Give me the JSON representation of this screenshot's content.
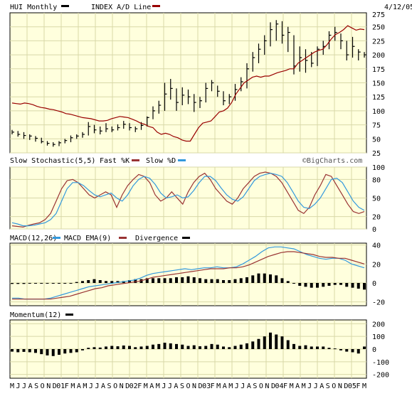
{
  "header": {
    "symbol_legend": "HUI Monthly",
    "index_legend": "INDEX A/D Line",
    "date": "4/12/05"
  },
  "colors": {
    "panel_bg": "#ffffdd",
    "grid": "#d8d8a8",
    "bars": "#000000",
    "ad_line": "#990000",
    "fast_k": "#993333",
    "slow_d": "#3399dd",
    "macd": "#3399dd",
    "macd_ema": "#993333",
    "divergence": "#000000",
    "momentum": "#000000"
  },
  "chart_data": [
    {
      "type": "bar",
      "title": "HUI Monthly",
      "legend": [
        "HUI Monthly",
        "INDEX A/D Line"
      ],
      "y_ticks": [
        "275",
        "250",
        "225",
        "200",
        "175",
        "150",
        "125",
        "100",
        "75",
        "50",
        "25"
      ],
      "ylim": [
        25,
        275
      ],
      "x_ticks": [
        "M",
        "J",
        "J",
        "A",
        "S",
        "O",
        "N",
        "D",
        "01",
        "F",
        "M",
        "A",
        "M",
        "J",
        "J",
        "A",
        "S",
        "O",
        "N",
        "D",
        "02",
        "F",
        "M",
        "A",
        "M",
        "J",
        "J",
        "A",
        "S",
        "O",
        "N",
        "D",
        "03",
        "F",
        "M",
        "A",
        "M",
        "J",
        "J",
        "A",
        "S",
        "O",
        "N",
        "D",
        "04",
        "F",
        "M",
        "A",
        "M",
        "J",
        "J",
        "A",
        "S",
        "O",
        "N",
        "D",
        "05",
        "F",
        "M"
      ],
      "series": [
        {
          "name": "HUI Monthly",
          "hlc": [
            [
              66,
              58,
              62
            ],
            [
              64,
              54,
              58
            ],
            [
              62,
              50,
              56
            ],
            [
              58,
              48,
              55
            ],
            [
              55,
              45,
              51
            ],
            [
              52,
              42,
              45
            ],
            [
              46,
              38,
              42
            ],
            [
              44,
              36,
              40
            ],
            [
              46,
              37,
              43
            ],
            [
              50,
              42,
              47
            ],
            [
              56,
              44,
              52
            ],
            [
              58,
              50,
              55
            ],
            [
              62,
              52,
              58
            ],
            [
              80,
              56,
              72
            ],
            [
              75,
              60,
              66
            ],
            [
              72,
              58,
              64
            ],
            [
              78,
              62,
              68
            ],
            [
              72,
              62,
              66
            ],
            [
              76,
              65,
              70
            ],
            [
              82,
              68,
              76
            ],
            [
              78,
              65,
              70
            ],
            [
              72,
              62,
              68
            ],
            [
              80,
              66,
              74
            ],
            [
              90,
              72,
              88
            ],
            [
              108,
              85,
              100
            ],
            [
              118,
              95,
              110
            ],
            [
              150,
              100,
              130
            ],
            [
              157,
              120,
              140
            ],
            [
              140,
              100,
              115
            ],
            [
              142,
              110,
              128
            ],
            [
              138,
              112,
              125
            ],
            [
              130,
              98,
              115
            ],
            [
              125,
              105,
              118
            ],
            [
              150,
              115,
              140
            ],
            [
              155,
              135,
              150
            ],
            [
              145,
              125,
              135
            ],
            [
              135,
              110,
              118
            ],
            [
              130,
              112,
              125
            ],
            [
              148,
              118,
              138
            ],
            [
              160,
              135,
              152
            ],
            [
              185,
              140,
              175
            ],
            [
              205,
              170,
              195
            ],
            [
              220,
              185,
              210
            ],
            [
              235,
              200,
              225
            ],
            [
              258,
              215,
              245
            ],
            [
              262,
              225,
              255
            ],
            [
              260,
              220,
              235
            ],
            [
              250,
              205,
              240
            ],
            [
              235,
              165,
              180
            ],
            [
              215,
              170,
              195
            ],
            [
              210,
              168,
              190
            ],
            [
              205,
              178,
              185
            ],
            [
              215,
              180,
              210
            ],
            [
              225,
              200,
              215
            ],
            [
              242,
              210,
              235
            ],
            [
              250,
              225,
              240
            ],
            [
              238,
              210,
              225
            ],
            [
              225,
              190,
              200
            ],
            [
              232,
              195,
              215
            ],
            [
              210,
              190,
              205
            ],
            [
              205,
              195,
              200
            ]
          ]
        },
        {
          "name": "INDEX A/D Line",
          "values": [
            114,
            113,
            112,
            114,
            113,
            111,
            108,
            106,
            105,
            103,
            102,
            100,
            98,
            95,
            94,
            92,
            90,
            88,
            87,
            86,
            84,
            82,
            82,
            83,
            86,
            88,
            90,
            89,
            88,
            85,
            82,
            78,
            76,
            72,
            70,
            62,
            58,
            60,
            58,
            54,
            52,
            48,
            46,
            46,
            58,
            70,
            78,
            80,
            82,
            90,
            98,
            100,
            105,
            115,
            130,
            140,
            150,
            155,
            160,
            162,
            160,
            162,
            162,
            165,
            168,
            170,
            172,
            175,
            175,
            185,
            190,
            195,
            200,
            205,
            208,
            210,
            218,
            228,
            236,
            240,
            245,
            252,
            248,
            244,
            246,
            245
          ]
        }
      ]
    },
    {
      "type": "line",
      "title": "Slow Stochastic(5,5)",
      "legend": [
        "Fast %K",
        "Slow %D"
      ],
      "y_ticks": [
        "100",
        "80",
        "50",
        "20",
        "0"
      ],
      "ylim": [
        0,
        100
      ],
      "series": [
        {
          "name": "Fast %K",
          "values": [
            5,
            4,
            3,
            6,
            8,
            10,
            15,
            25,
            45,
            65,
            78,
            80,
            75,
            65,
            55,
            50,
            55,
            60,
            55,
            35,
            55,
            70,
            80,
            88,
            85,
            75,
            55,
            45,
            50,
            60,
            50,
            40,
            60,
            75,
            85,
            90,
            80,
            65,
            55,
            45,
            40,
            50,
            65,
            75,
            85,
            90,
            92,
            90,
            85,
            75,
            60,
            45,
            30,
            25,
            35,
            55,
            70,
            88,
            85,
            70,
            55,
            40,
            28,
            25,
            28
          ]
        },
        {
          "name": "Slow %D",
          "values": [
            10,
            8,
            5,
            5,
            6,
            8,
            10,
            15,
            25,
            45,
            65,
            75,
            75,
            70,
            62,
            55,
            52,
            55,
            58,
            50,
            45,
            55,
            70,
            80,
            85,
            82,
            72,
            58,
            50,
            52,
            55,
            50,
            52,
            62,
            75,
            85,
            85,
            78,
            66,
            55,
            48,
            45,
            52,
            65,
            78,
            85,
            88,
            90,
            88,
            85,
            75,
            60,
            45,
            35,
            33,
            40,
            50,
            65,
            80,
            82,
            75,
            60,
            45,
            35,
            30
          ]
        }
      ]
    },
    {
      "type": "bar",
      "title": "MACD(12,26)",
      "legend": [
        "MACD EMA(9)",
        "Divergence"
      ],
      "y_ticks": [
        "40",
        "20",
        "0",
        "-20"
      ],
      "ylim": [
        -24,
        42
      ],
      "series": [
        {
          "name": "MACD(12,26)",
          "values": [
            -16,
            -16,
            -17,
            -17,
            -17,
            -17,
            -16,
            -14,
            -12,
            -10,
            -8,
            -6,
            -4,
            -3,
            -2,
            -1,
            0,
            1,
            2,
            3,
            5,
            8,
            10,
            11,
            12,
            13,
            14,
            15,
            14,
            15,
            16,
            16,
            17,
            16,
            16,
            17,
            20,
            24,
            28,
            33,
            37,
            38,
            38,
            37,
            36,
            33,
            30,
            28,
            26,
            25,
            26,
            26,
            24,
            20,
            18,
            16
          ]
        },
        {
          "name": "MACD EMA(9)",
          "values": [
            -17,
            -17,
            -17,
            -17,
            -17,
            -17,
            -17,
            -16,
            -15,
            -14,
            -12,
            -10,
            -8,
            -6,
            -5,
            -3,
            -2,
            -1,
            0,
            1,
            2,
            4,
            6,
            7,
            8,
            9,
            10,
            11,
            12,
            13,
            14,
            15,
            15,
            15,
            16,
            16,
            17,
            19,
            22,
            25,
            28,
            30,
            32,
            33,
            33,
            32,
            31,
            30,
            28,
            27,
            27,
            26,
            26,
            24,
            22,
            20
          ]
        },
        {
          "name": "Divergence",
          "values": [
            -1,
            -1,
            -1,
            0,
            0,
            0,
            0,
            0,
            0,
            0,
            0,
            1,
            2,
            3,
            4,
            3,
            2,
            2,
            2,
            2,
            3,
            4,
            4,
            5,
            5,
            5,
            5,
            5,
            6,
            6,
            7,
            6,
            5,
            4,
            4,
            4,
            3,
            3,
            4,
            5,
            6,
            8,
            10,
            10,
            9,
            8,
            5,
            2,
            0,
            -3,
            -4,
            -5,
            -5,
            -4,
            -3,
            -2,
            -2,
            -4,
            -5,
            -6,
            -7
          ]
        }
      ]
    },
    {
      "type": "bar",
      "title": "Momentum(12)",
      "y_ticks": [
        "200",
        "100",
        "0",
        "-100",
        "-200"
      ],
      "ylim": [
        -230,
        230
      ],
      "series": [
        {
          "name": "Momentum(12)",
          "values": [
            -20,
            -25,
            -22,
            -25,
            -30,
            -40,
            -50,
            -55,
            -45,
            -35,
            -30,
            -25,
            -10,
            10,
            15,
            12,
            20,
            25,
            22,
            28,
            25,
            15,
            20,
            25,
            35,
            40,
            50,
            45,
            40,
            35,
            25,
            30,
            22,
            25,
            40,
            35,
            20,
            15,
            25,
            35,
            45,
            60,
            80,
            100,
            130,
            115,
            100,
            70,
            40,
            25,
            30,
            20,
            20,
            20,
            10,
            5,
            -10,
            -20,
            -25,
            -35,
            20
          ]
        }
      ]
    }
  ]
}
